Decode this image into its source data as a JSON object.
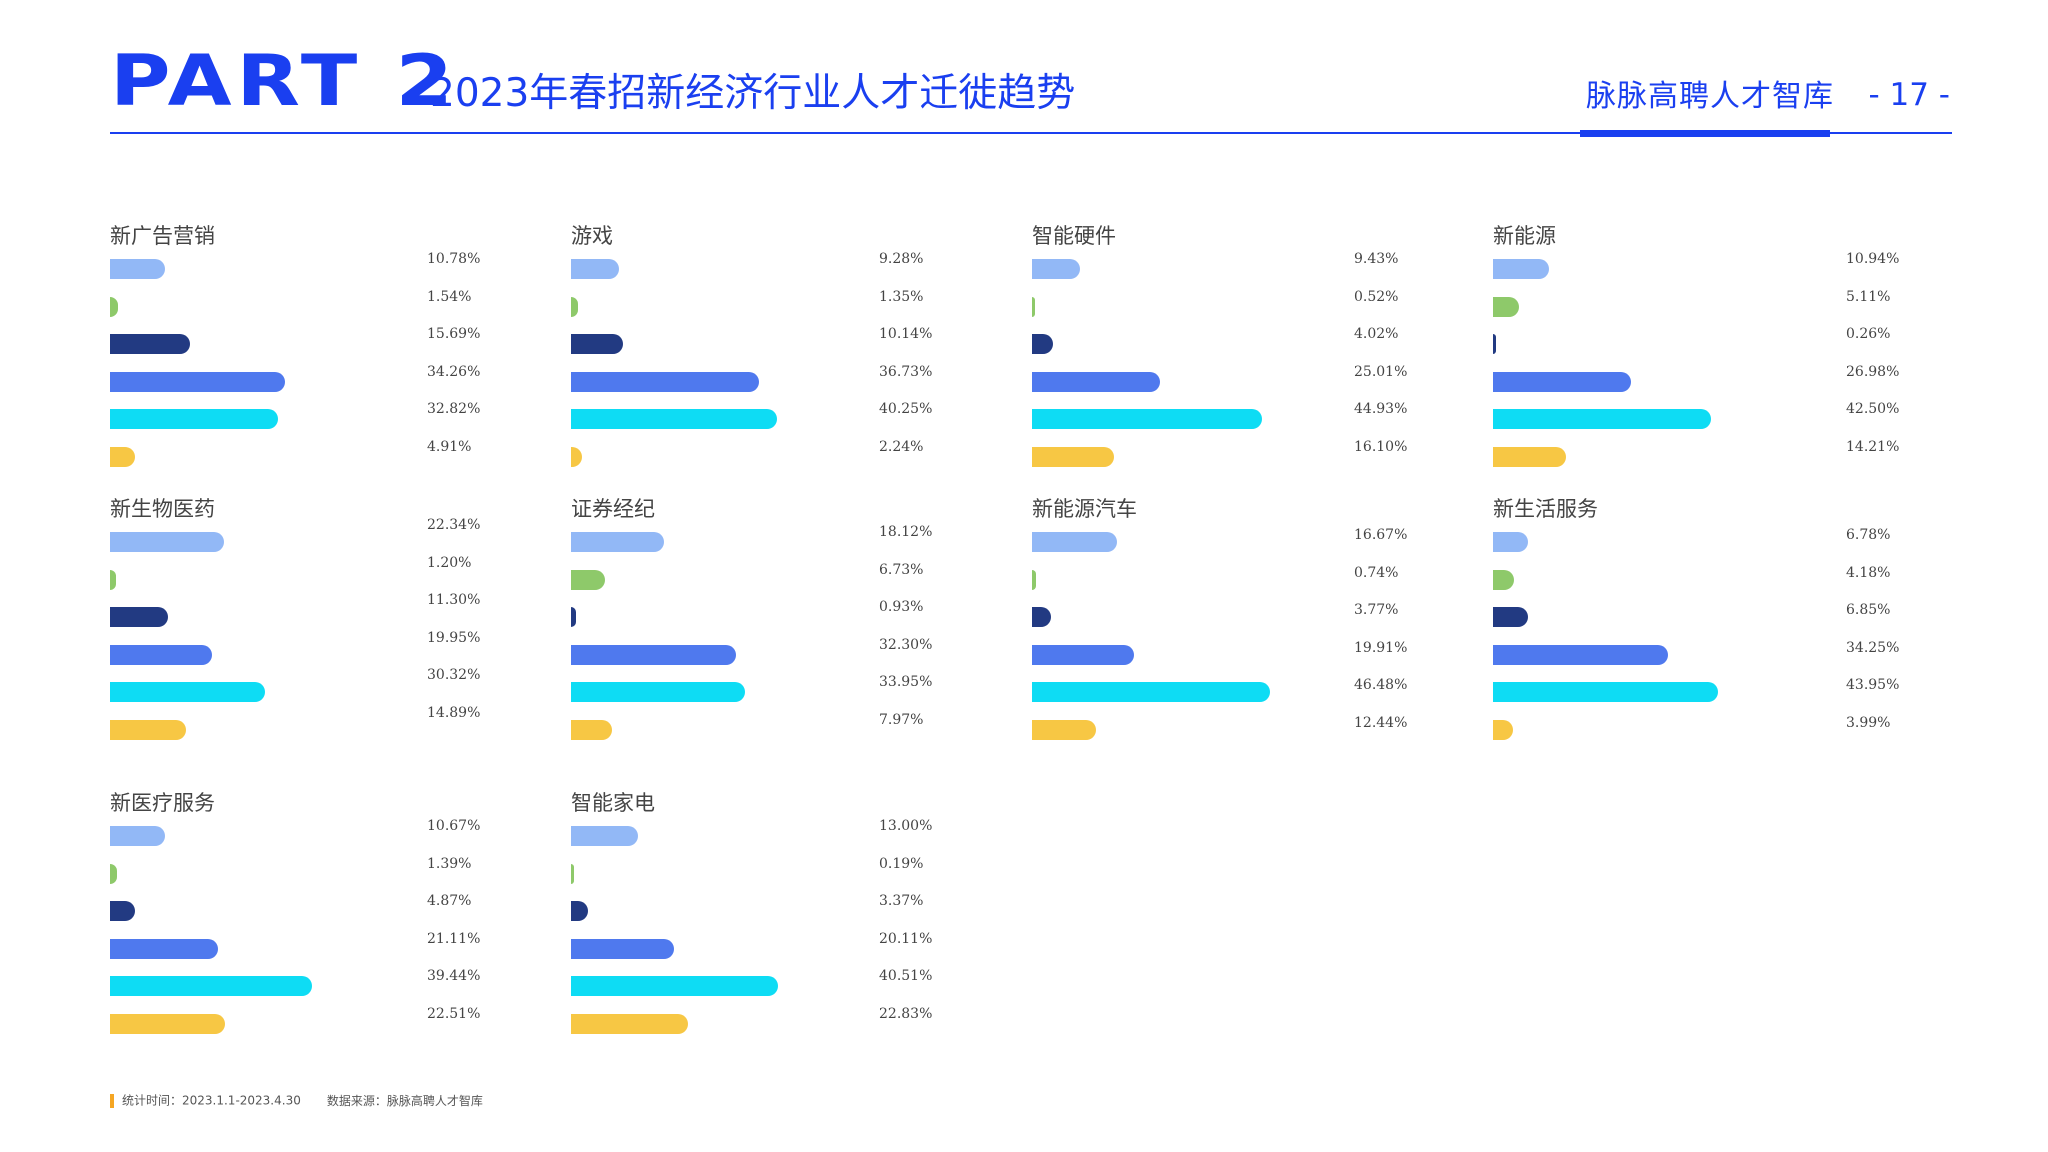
{
  "header": {
    "part": "PART 2",
    "title": "2023年春招新经济行业人才迁徙趋势",
    "brand": "脉脉高聘人才智库",
    "page": "- 17 -"
  },
  "footer": {
    "period": "统计时间：2023.1.1-2023.4.30",
    "source": "数据来源：脉脉高聘人才智库"
  },
  "colors": [
    "#92b8f6",
    "#8ec96a",
    "#223a82",
    "#4f79ee",
    "#0edcf4",
    "#f7c744"
  ],
  "chart_data": [
    {
      "type": "bar",
      "title": "新广告营销",
      "values": [
        10.78,
        1.54,
        15.69,
        34.26,
        32.82,
        4.91
      ],
      "labels": [
        "10.78%",
        "1.54%",
        "15.69%",
        "34.26%",
        "32.82%",
        "4.91%"
      ]
    },
    {
      "type": "bar",
      "title": "游戏",
      "values": [
        9.28,
        1.35,
        10.14,
        36.73,
        40.25,
        2.24
      ],
      "labels": [
        "9.28%",
        "1.35%",
        "10.14%",
        "36.73%",
        "40.25%",
        "2.24%"
      ]
    },
    {
      "type": "bar",
      "title": "智能硬件",
      "values": [
        9.43,
        0.52,
        4.02,
        25.01,
        44.93,
        16.1
      ],
      "labels": [
        "9.43%",
        "0.52%",
        "4.02%",
        "25.01%",
        "44.93%",
        "16.10%"
      ]
    },
    {
      "type": "bar",
      "title": "新能源",
      "values": [
        10.94,
        5.11,
        0.26,
        26.98,
        42.5,
        14.21
      ],
      "labels": [
        "10.94%",
        "5.11%",
        "0.26%",
        "26.98%",
        "42.50%",
        "14.21%"
      ]
    },
    {
      "type": "bar",
      "title": "新生物医药",
      "values": [
        22.34,
        1.2,
        11.3,
        19.95,
        30.32,
        14.89
      ],
      "labels": [
        "22.34%",
        "1.20%",
        "11.30%",
        "19.95%",
        "30.32%",
        "14.89%"
      ]
    },
    {
      "type": "bar",
      "title": "证券经纪",
      "values": [
        18.12,
        6.73,
        0.93,
        32.3,
        33.95,
        7.97
      ],
      "labels": [
        "18.12%",
        "6.73%",
        "0.93%",
        "32.30%",
        "33.95%",
        "7.97%"
      ]
    },
    {
      "type": "bar",
      "title": "新能源汽车",
      "values": [
        16.67,
        0.74,
        3.77,
        19.91,
        46.48,
        12.44
      ],
      "labels": [
        "16.67%",
        "0.74%",
        "3.77%",
        "19.91%",
        "46.48%",
        "12.44%"
      ]
    },
    {
      "type": "bar",
      "title": "新生活服务",
      "values": [
        6.78,
        4.18,
        6.85,
        34.25,
        43.95,
        3.99
      ],
      "labels": [
        "6.78%",
        "4.18%",
        "6.85%",
        "34.25%",
        "43.95%",
        "3.99%"
      ]
    },
    {
      "type": "bar",
      "title": "新医疗服务",
      "values": [
        10.67,
        1.39,
        4.87,
        21.11,
        39.44,
        22.51
      ],
      "labels": [
        "10.67%",
        "1.39%",
        "4.87%",
        "21.11%",
        "39.44%",
        "22.51%"
      ]
    },
    {
      "type": "bar",
      "title": "智能家电",
      "values": [
        13.0,
        0.19,
        3.37,
        20.11,
        40.51,
        22.83
      ],
      "labels": [
        "13.00%",
        "0.19%",
        "3.37%",
        "20.11%",
        "40.51%",
        "22.83%"
      ]
    }
  ]
}
